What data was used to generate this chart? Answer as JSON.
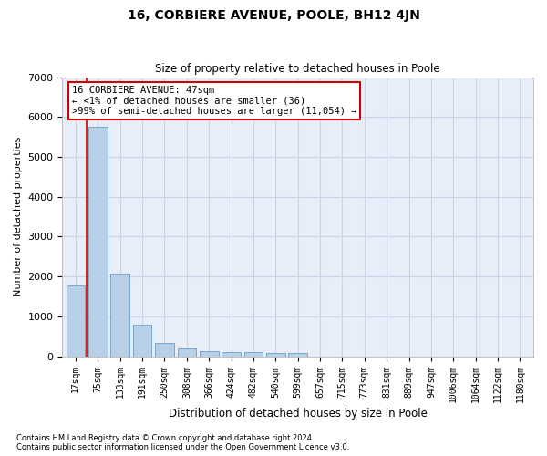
{
  "title": "16, CORBIERE AVENUE, POOLE, BH12 4JN",
  "subtitle": "Size of property relative to detached houses in Poole",
  "xlabel": "Distribution of detached houses by size in Poole",
  "ylabel": "Number of detached properties",
  "bar_color": "#b8cfe8",
  "bar_edge_color": "#5a8fc0",
  "grid_color": "#c8d4e8",
  "background_color": "#e8eef8",
  "categories": [
    "17sqm",
    "75sqm",
    "133sqm",
    "191sqm",
    "250sqm",
    "308sqm",
    "366sqm",
    "424sqm",
    "482sqm",
    "540sqm",
    "599sqm",
    "657sqm",
    "715sqm",
    "773sqm",
    "831sqm",
    "889sqm",
    "947sqm",
    "1006sqm",
    "1064sqm",
    "1122sqm",
    "1180sqm"
  ],
  "values": [
    1780,
    5750,
    2080,
    800,
    340,
    190,
    120,
    110,
    110,
    80,
    80,
    0,
    0,
    0,
    0,
    0,
    0,
    0,
    0,
    0,
    0
  ],
  "ylim": [
    0,
    7000
  ],
  "yticks": [
    0,
    1000,
    2000,
    3000,
    4000,
    5000,
    6000,
    7000
  ],
  "annotation_title": "16 CORBIERE AVENUE: 47sqm",
  "annotation_line1": "← <1% of detached houses are smaller (36)",
  "annotation_line2": ">99% of semi-detached houses are larger (11,054) →",
  "red_line_color": "#cc0000",
  "annotation_box_edge_color": "#cc0000",
  "footer_line1": "Contains HM Land Registry data © Crown copyright and database right 2024.",
  "footer_line2": "Contains public sector information licensed under the Open Government Licence v3.0."
}
